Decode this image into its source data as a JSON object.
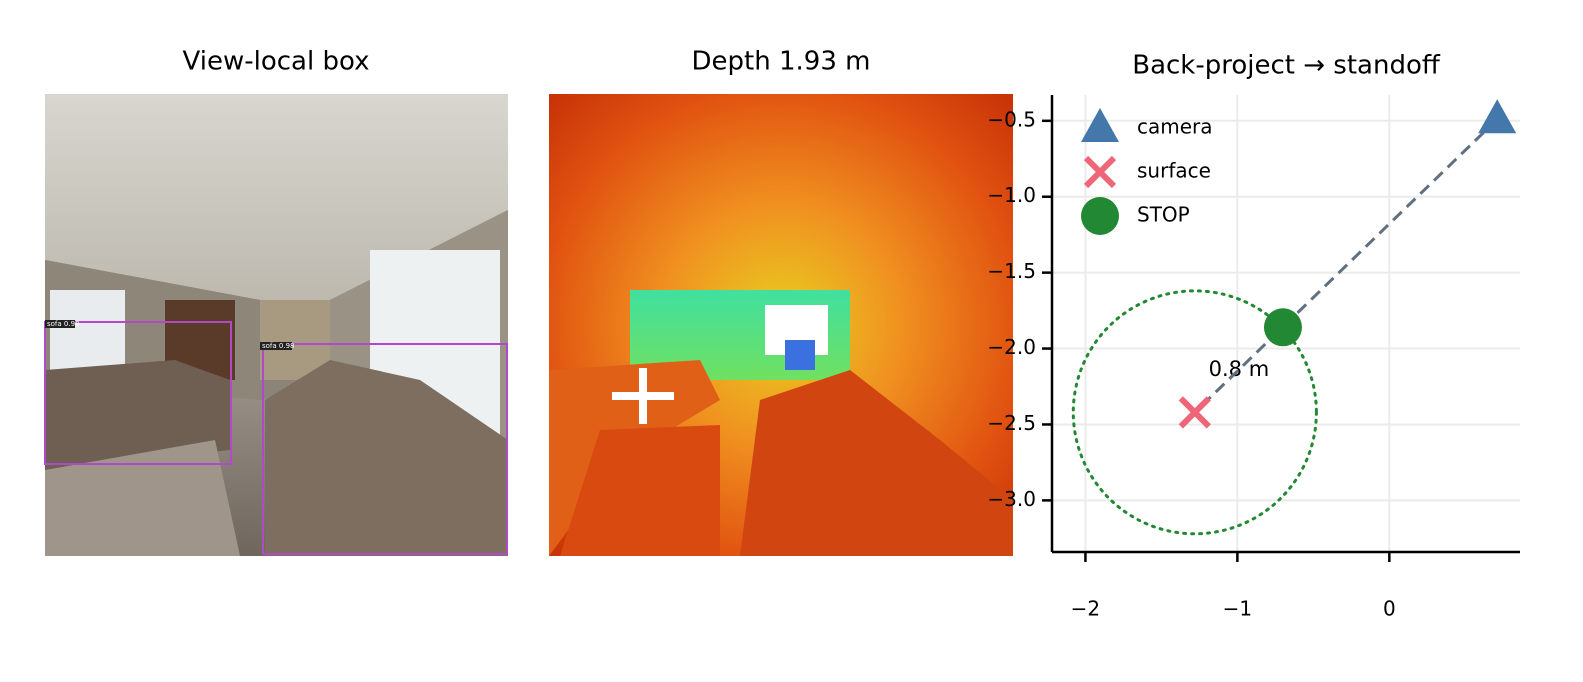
{
  "panels": [
    {
      "title": "View-local box",
      "detections": [
        {
          "label": "sofa 0.98"
        },
        {
          "label": "sofa 0.98"
        }
      ]
    },
    {
      "title": "Depth 1.93 m"
    }
  ],
  "chart_data": {
    "type": "scatter",
    "title": "Back-project → standoff",
    "series": [
      {
        "name": "camera",
        "color": "#4477aa",
        "marker": "triangle",
        "x": [
          0.71
        ],
        "y": [
          -0.49
        ]
      },
      {
        "name": "surface",
        "color": "#ee6677",
        "marker": "x",
        "x": [
          -1.28
        ],
        "y": [
          -2.42
        ]
      },
      {
        "name": "STOP",
        "color": "#228833",
        "marker": "circle",
        "x": [
          -0.7
        ],
        "y": [
          -1.86
        ]
      }
    ],
    "standoff_radius": 0.8,
    "standoff_label": "0.8 m",
    "xlim": [
      -2.22,
      0.86
    ],
    "xticks": [
      {
        "value": -2,
        "label": "−2"
      },
      {
        "value": -1,
        "label": "−1"
      },
      0
    ],
    "ylim": [
      -3.34,
      -0.33
    ],
    "yticks": [
      {
        "value": -0.5,
        "label": "−0.5"
      },
      {
        "value": -1.0,
        "label": "−1.0"
      },
      {
        "value": -1.5,
        "label": "−1.5"
      },
      {
        "value": -2.0,
        "label": "−2.0"
      },
      {
        "value": -2.5,
        "label": "−2.5"
      },
      {
        "value": -3.0,
        "label": "−3.0"
      }
    ],
    "grid": true,
    "legend": "upper left"
  }
}
